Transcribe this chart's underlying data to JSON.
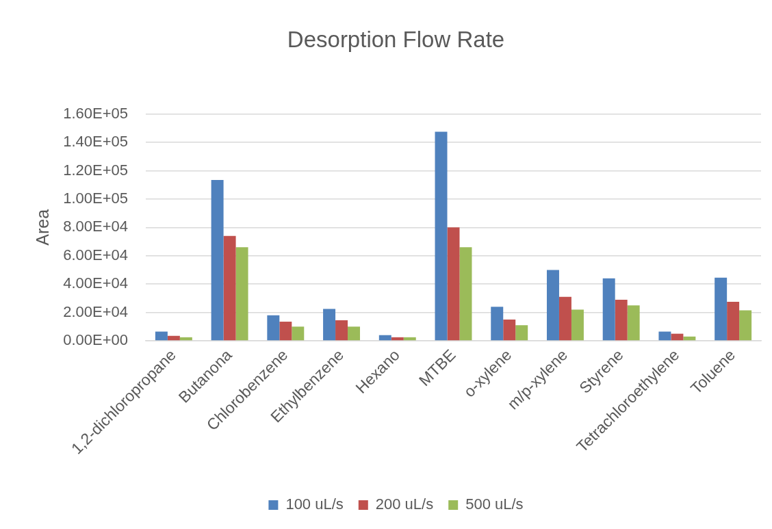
{
  "chart_data": {
    "type": "bar",
    "title": "Desorption Flow Rate",
    "ylabel": "Area",
    "categories": [
      "1,2-dichloropropane",
      "Butanona",
      "Chlorobenzene",
      "Ethylbenzene",
      "Hexano",
      "MTBE",
      "o-xylene",
      "m/p-xylene",
      "Styrene",
      "Tetrachloroethylene",
      "Toluene"
    ],
    "series": [
      {
        "name": "100 uL/s",
        "color": "#4f81bd",
        "values": [
          6500,
          113500,
          18000,
          22500,
          4000,
          147500,
          24000,
          50000,
          44000,
          6500,
          44500
        ]
      },
      {
        "name": "200 uL/s",
        "color": "#c0504d",
        "values": [
          3500,
          74000,
          13500,
          14500,
          2500,
          80000,
          15000,
          31000,
          29000,
          5000,
          27500
        ]
      },
      {
        "name": "500 uL/s",
        "color": "#9bbb59",
        "values": [
          2500,
          66000,
          10000,
          10000,
          2500,
          66000,
          11000,
          22000,
          25000,
          3000,
          21500
        ]
      }
    ],
    "ylim": [
      0,
      160000
    ],
    "yticks": [
      {
        "value": 0,
        "label": "0.00E+00"
      },
      {
        "value": 20000,
        "label": "2.00E+04"
      },
      {
        "value": 40000,
        "label": "4.00E+04"
      },
      {
        "value": 60000,
        "label": "6.00E+04"
      },
      {
        "value": 80000,
        "label": "8.00E+04"
      },
      {
        "value": 100000,
        "label": "1.00E+05"
      },
      {
        "value": 120000,
        "label": "1.20E+05"
      },
      {
        "value": 140000,
        "label": "1.40E+05"
      },
      {
        "value": 160000,
        "label": "1.60E+05"
      }
    ],
    "grid": "y",
    "legend": "bottom"
  }
}
